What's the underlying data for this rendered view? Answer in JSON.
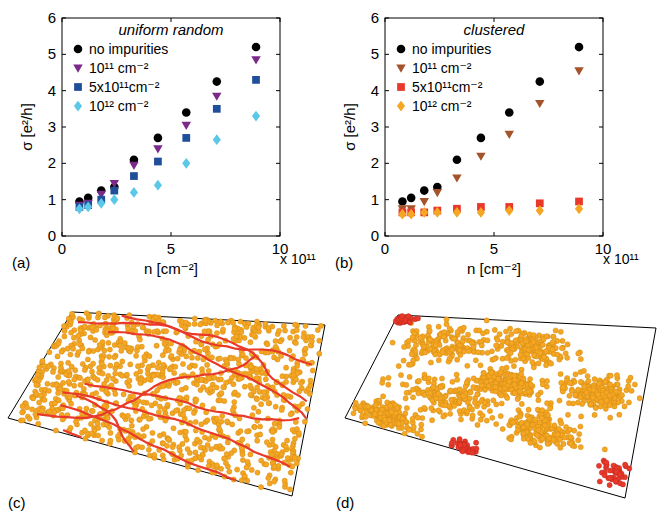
{
  "chart_data": [
    {
      "type": "scatter",
      "label": "(a)",
      "title": "uniform random",
      "xlabel": "n [cm⁻²]",
      "ylabel": "σ [e²/h]",
      "x_scale_label": "x 10¹¹",
      "x": [
        0.8,
        1.2,
        1.8,
        2.4,
        3.3,
        4.4,
        5.7,
        7.1,
        8.9
      ],
      "xlim": [
        0,
        10
      ],
      "xticks": [
        0,
        5,
        10
      ],
      "ylim": [
        0,
        6
      ],
      "yticks": [
        0,
        1,
        2,
        3,
        4,
        5,
        6
      ],
      "legend": "top-left",
      "grid": false,
      "series": [
        {
          "name": "no impurities",
          "color": "#000000",
          "marker": "circle",
          "values": [
            0.95,
            1.05,
            1.25,
            1.35,
            2.1,
            2.7,
            3.4,
            4.25,
            5.2
          ]
        },
        {
          "name": "10¹¹ cm⁻²",
          "color": "#7b2a8a",
          "marker": "triangle-down",
          "values": [
            0.85,
            0.9,
            1.15,
            1.45,
            1.95,
            2.4,
            3.05,
            3.85,
            4.85
          ]
        },
        {
          "name": "5x10¹¹cm⁻²",
          "color": "#1f4e9a",
          "marker": "square",
          "values": [
            0.8,
            0.85,
            1.0,
            1.25,
            1.65,
            2.05,
            2.7,
            3.5,
            4.3
          ]
        },
        {
          "name": "10¹² cm⁻²",
          "color": "#5bc8e8",
          "marker": "diamond",
          "values": [
            0.75,
            0.8,
            0.9,
            1.0,
            1.2,
            1.4,
            2.0,
            2.65,
            3.3
          ]
        }
      ]
    },
    {
      "type": "scatter",
      "label": "(b)",
      "title": "clustered",
      "xlabel": "n [cm⁻²]",
      "ylabel": "σ [e²/h]",
      "x_scale_label": "x 10¹¹",
      "x": [
        0.8,
        1.2,
        1.8,
        2.4,
        3.3,
        4.4,
        5.7,
        7.1,
        8.9
      ],
      "xlim": [
        0,
        10
      ],
      "xticks": [
        0,
        5,
        10
      ],
      "ylim": [
        0,
        6
      ],
      "yticks": [
        0,
        1,
        2,
        3,
        4,
        5,
        6
      ],
      "legend": "top-left",
      "grid": false,
      "series": [
        {
          "name": "no impurities",
          "color": "#000000",
          "marker": "circle",
          "values": [
            0.95,
            1.05,
            1.25,
            1.35,
            2.1,
            2.7,
            3.4,
            4.25,
            5.2
          ]
        },
        {
          "name": "10¹¹ cm⁻²",
          "color": "#a5532a",
          "marker": "triangle-down",
          "values": [
            0.75,
            0.75,
            0.95,
            1.2,
            1.6,
            2.2,
            2.8,
            3.65,
            4.55
          ]
        },
        {
          "name": "5x10¹¹cm⁻²",
          "color": "#e8392b",
          "marker": "square",
          "values": [
            0.65,
            0.65,
            0.65,
            0.7,
            0.75,
            0.8,
            0.8,
            0.9,
            0.95
          ]
        },
        {
          "name": "10¹² cm⁻²",
          "color": "#f5a623",
          "marker": "diamond",
          "values": [
            0.6,
            0.6,
            0.65,
            0.65,
            0.65,
            0.65,
            0.7,
            0.7,
            0.75
          ]
        }
      ]
    }
  ],
  "illustrations": [
    {
      "label": "(c)"
    },
    {
      "label": "(d)"
    }
  ]
}
